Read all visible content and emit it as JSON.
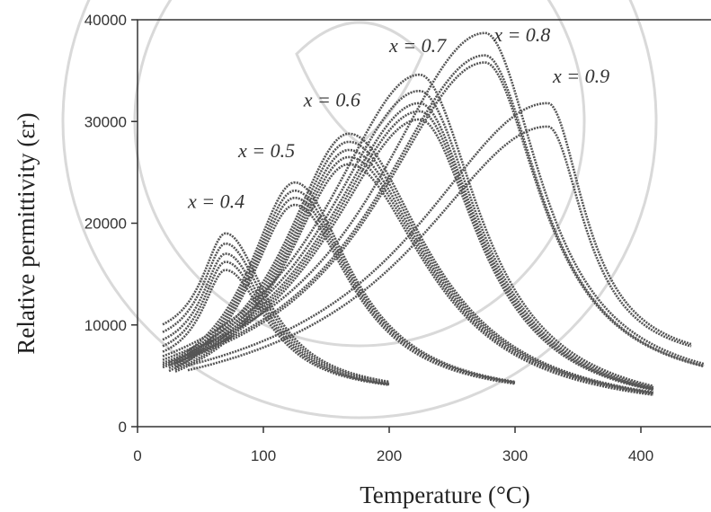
{
  "chart_data": {
    "type": "line",
    "xlabel": "Temperature (°C)",
    "ylabel": "Relative permittivity (εr)",
    "xlim": [
      0,
      450
    ],
    "ylim": [
      0,
      40000
    ],
    "xticks": [
      "0",
      "100",
      "200",
      "300",
      "400"
    ],
    "yticks": [
      "0",
      "10000",
      "20000",
      "30000",
      "40000"
    ],
    "grid": false,
    "legend": "none",
    "colors": {
      "curve": "#555555",
      "axis": "#333333",
      "watermark": "#d9d9d9"
    },
    "series": [
      {
        "name": "x = 0.4",
        "label_at": [
          40,
          21500
        ],
        "x_range": [
          20,
          200
        ],
        "peak_x": 70,
        "peaks": [
          19000,
          18000,
          17000,
          16200,
          15400
        ],
        "base": [
          8200,
          7500,
          6800,
          6200,
          5700
        ],
        "end": 3000
      },
      {
        "name": "x = 0.5",
        "label_at": [
          80,
          26500
        ],
        "x_range": [
          25,
          300
        ],
        "peak_x": 125,
        "peaks": [
          24000,
          23200,
          22500,
          21800
        ],
        "base": [
          2700,
          2500,
          2300,
          2100
        ],
        "end": 2500
      },
      {
        "name": "x = 0.6",
        "label_at": [
          132,
          31500
        ],
        "x_range": [
          30,
          410
        ],
        "peak_x": 168,
        "peaks": [
          28800,
          28000,
          27200,
          26500,
          25800
        ],
        "base": [
          1900,
          1700,
          1500,
          1300,
          1200
        ],
        "end": 900
      },
      {
        "name": "x = 0.7",
        "label_at": [
          200,
          36800
        ],
        "x_range": [
          20,
          410
        ],
        "peak_x": 224,
        "peaks": [
          34600,
          33000,
          31800,
          31000,
          30200
        ],
        "base": [
          1200,
          1100,
          1000,
          900,
          800
        ],
        "end": 1000
      },
      {
        "name": "x = 0.8",
        "label_at": [
          283,
          37900
        ],
        "x_range": [
          40,
          450
        ],
        "peak_x": 276,
        "peaks": [
          38700,
          36500,
          35800
        ],
        "base": [
          1000,
          900,
          800
        ],
        "end": 3000
      },
      {
        "name": "x = 0.9",
        "label_at": [
          330,
          33800
        ],
        "x_range": [
          40,
          440
        ],
        "peak_x": 326,
        "peaks": [
          31800,
          29500
        ],
        "base": [
          700,
          600
        ],
        "end": 5800
      }
    ]
  }
}
